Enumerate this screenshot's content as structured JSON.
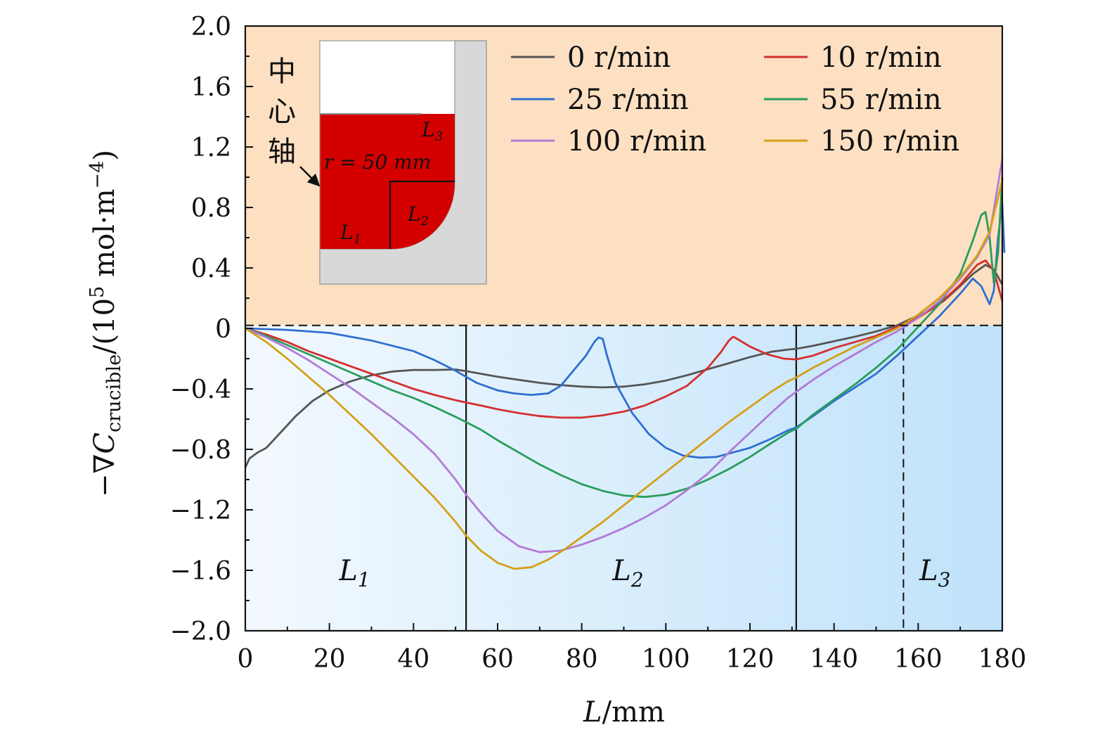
{
  "chart_data": {
    "type": "line",
    "xlabel_var": "L",
    "xlabel_unit": "/mm",
    "ylabel_prefix": "−∇C",
    "ylabel_sub": "crucible",
    "ylabel_mid": "/(10",
    "ylabel_exp": "5",
    "ylabel_unit": " mol·m",
    "ylabel_unit_exp": "−4",
    "ylabel_close": ")",
    "xlim": [
      0,
      180
    ],
    "ylim": [
      -2.0,
      2.0
    ],
    "x_ticks": [
      "0",
      "20",
      "40",
      "60",
      "80",
      "100",
      "120",
      "140",
      "160",
      "180"
    ],
    "y_ticks": [
      "2.0",
      "1.6",
      "1.2",
      "0.8",
      "0.4",
      "0",
      "−0.4",
      "−0.8",
      "−1.2",
      "−1.6",
      "−2.0"
    ],
    "x_tick_values": [
      0,
      20,
      40,
      60,
      80,
      100,
      120,
      140,
      160,
      180
    ],
    "y_tick_values": [
      2.0,
      1.6,
      1.2,
      0.8,
      0.4,
      0,
      -0.4,
      -0.8,
      -1.2,
      -1.6,
      -2.0
    ],
    "regions": [
      {
        "label": "L",
        "sub": "1",
        "x": 26
      },
      {
        "label": "L",
        "sub": "2",
        "x": 91
      },
      {
        "label": "L",
        "sub": "3",
        "x": 164
      }
    ],
    "region_label_y": -1.6,
    "boundaries_solid": [
      52.5,
      131
    ],
    "boundary_dashed": 156.5,
    "zero_line_y": 0.02,
    "region_colors": {
      "positive": "#fde0c2",
      "negative_left": "#f3f9fe",
      "negative_right": "#bfe2fa"
    },
    "series": [
      {
        "name": "0 r/min",
        "color": "#555555",
        "points": [
          [
            0,
            -0.92
          ],
          [
            1,
            -0.86
          ],
          [
            3,
            -0.82
          ],
          [
            5,
            -0.79
          ],
          [
            8,
            -0.7
          ],
          [
            12,
            -0.58
          ],
          [
            16,
            -0.48
          ],
          [
            20,
            -0.41
          ],
          [
            25,
            -0.35
          ],
          [
            30,
            -0.31
          ],
          [
            35,
            -0.285
          ],
          [
            40,
            -0.275
          ],
          [
            45,
            -0.275
          ],
          [
            50,
            -0.272
          ],
          [
            52,
            -0.28
          ],
          [
            56,
            -0.3
          ],
          [
            60,
            -0.32
          ],
          [
            65,
            -0.34
          ],
          [
            70,
            -0.36
          ],
          [
            75,
            -0.375
          ],
          [
            80,
            -0.385
          ],
          [
            85,
            -0.39
          ],
          [
            90,
            -0.385
          ],
          [
            95,
            -0.37
          ],
          [
            100,
            -0.345
          ],
          [
            105,
            -0.31
          ],
          [
            110,
            -0.27
          ],
          [
            115,
            -0.23
          ],
          [
            120,
            -0.19
          ],
          [
            125,
            -0.155
          ],
          [
            129,
            -0.14
          ],
          [
            131,
            -0.135
          ],
          [
            135,
            -0.115
          ],
          [
            140,
            -0.085
          ],
          [
            145,
            -0.055
          ],
          [
            150,
            -0.02
          ],
          [
            155,
            0.02
          ],
          [
            158,
            0.06
          ],
          [
            162,
            0.11
          ],
          [
            166,
            0.18
          ],
          [
            170,
            0.28
          ],
          [
            173,
            0.36
          ],
          [
            176,
            0.42
          ],
          [
            178,
            0.39
          ],
          [
            180,
            0.29
          ]
        ]
      },
      {
        "name": "10 r/min",
        "color": "#d62f2f",
        "points": [
          [
            0,
            0
          ],
          [
            5,
            -0.04
          ],
          [
            10,
            -0.09
          ],
          [
            15,
            -0.15
          ],
          [
            20,
            -0.2
          ],
          [
            25,
            -0.25
          ],
          [
            30,
            -0.3
          ],
          [
            35,
            -0.35
          ],
          [
            40,
            -0.4
          ],
          [
            45,
            -0.44
          ],
          [
            50,
            -0.475
          ],
          [
            52.5,
            -0.49
          ],
          [
            56,
            -0.51
          ],
          [
            60,
            -0.535
          ],
          [
            65,
            -0.56
          ],
          [
            70,
            -0.58
          ],
          [
            75,
            -0.59
          ],
          [
            80,
            -0.59
          ],
          [
            85,
            -0.575
          ],
          [
            90,
            -0.55
          ],
          [
            95,
            -0.51
          ],
          [
            100,
            -0.45
          ],
          [
            105,
            -0.38
          ],
          [
            110,
            -0.26
          ],
          [
            113,
            -0.16
          ],
          [
            115,
            -0.08
          ],
          [
            116,
            -0.055
          ],
          [
            117,
            -0.07
          ],
          [
            120,
            -0.12
          ],
          [
            124,
            -0.17
          ],
          [
            128,
            -0.2
          ],
          [
            131,
            -0.205
          ],
          [
            135,
            -0.18
          ],
          [
            140,
            -0.13
          ],
          [
            145,
            -0.09
          ],
          [
            150,
            -0.05
          ],
          [
            155,
            0.01
          ],
          [
            160,
            0.07
          ],
          [
            165,
            0.16
          ],
          [
            170,
            0.29
          ],
          [
            174,
            0.42
          ],
          [
            176,
            0.45
          ],
          [
            178,
            0.38
          ],
          [
            180,
            0.18
          ]
        ]
      },
      {
        "name": "25 r/min",
        "color": "#2e6fd0",
        "points": [
          [
            0,
            0
          ],
          [
            10,
            -0.01
          ],
          [
            20,
            -0.03
          ],
          [
            30,
            -0.08
          ],
          [
            40,
            -0.15
          ],
          [
            45,
            -0.21
          ],
          [
            50,
            -0.28
          ],
          [
            52.5,
            -0.32
          ],
          [
            55,
            -0.36
          ],
          [
            60,
            -0.41
          ],
          [
            64,
            -0.43
          ],
          [
            68,
            -0.44
          ],
          [
            72,
            -0.43
          ],
          [
            75,
            -0.38
          ],
          [
            78,
            -0.28
          ],
          [
            81,
            -0.18
          ],
          [
            83,
            -0.09
          ],
          [
            84,
            -0.06
          ],
          [
            85,
            -0.07
          ],
          [
            86,
            -0.18
          ],
          [
            88,
            -0.36
          ],
          [
            92,
            -0.56
          ],
          [
            96,
            -0.7
          ],
          [
            100,
            -0.79
          ],
          [
            104,
            -0.84
          ],
          [
            108,
            -0.855
          ],
          [
            112,
            -0.85
          ],
          [
            116,
            -0.82
          ],
          [
            120,
            -0.79
          ],
          [
            125,
            -0.73
          ],
          [
            129,
            -0.675
          ],
          [
            131,
            -0.655
          ],
          [
            135,
            -0.58
          ],
          [
            140,
            -0.48
          ],
          [
            145,
            -0.39
          ],
          [
            150,
            -0.3
          ],
          [
            155,
            -0.18
          ],
          [
            160,
            -0.05
          ],
          [
            165,
            0.08
          ],
          [
            170,
            0.23
          ],
          [
            173,
            0.33
          ],
          [
            175,
            0.28
          ],
          [
            177,
            0.16
          ],
          [
            178,
            0.25
          ],
          [
            179,
            0.6
          ],
          [
            180,
            0.82
          ],
          [
            180.5,
            0.5
          ]
        ]
      },
      {
        "name": "55 r/min",
        "color": "#2a9d5c",
        "points": [
          [
            0,
            0
          ],
          [
            5,
            -0.05
          ],
          [
            10,
            -0.11
          ],
          [
            15,
            -0.17
          ],
          [
            20,
            -0.23
          ],
          [
            25,
            -0.29
          ],
          [
            30,
            -0.35
          ],
          [
            35,
            -0.41
          ],
          [
            40,
            -0.46
          ],
          [
            45,
            -0.52
          ],
          [
            50,
            -0.585
          ],
          [
            52.5,
            -0.62
          ],
          [
            56,
            -0.67
          ],
          [
            60,
            -0.74
          ],
          [
            65,
            -0.82
          ],
          [
            70,
            -0.9
          ],
          [
            75,
            -0.97
          ],
          [
            80,
            -1.03
          ],
          [
            85,
            -1.075
          ],
          [
            90,
            -1.105
          ],
          [
            95,
            -1.115
          ],
          [
            100,
            -1.1
          ],
          [
            105,
            -1.06
          ],
          [
            110,
            -1.0
          ],
          [
            115,
            -0.93
          ],
          [
            120,
            -0.85
          ],
          [
            125,
            -0.76
          ],
          [
            129,
            -0.69
          ],
          [
            131,
            -0.665
          ],
          [
            135,
            -0.57
          ],
          [
            140,
            -0.47
          ],
          [
            145,
            -0.37
          ],
          [
            150,
            -0.26
          ],
          [
            155,
            -0.14
          ],
          [
            160,
            0.01
          ],
          [
            165,
            0.16
          ],
          [
            170,
            0.36
          ],
          [
            173,
            0.58
          ],
          [
            175,
            0.75
          ],
          [
            176,
            0.77
          ],
          [
            177,
            0.6
          ],
          [
            178,
            0.3
          ],
          [
            179,
            0.5
          ],
          [
            180,
            1.0
          ]
        ]
      },
      {
        "name": "100 r/min",
        "color": "#b27ad6",
        "points": [
          [
            0,
            0
          ],
          [
            5,
            -0.06
          ],
          [
            10,
            -0.13
          ],
          [
            15,
            -0.21
          ],
          [
            20,
            -0.3
          ],
          [
            25,
            -0.39
          ],
          [
            30,
            -0.49
          ],
          [
            35,
            -0.59
          ],
          [
            40,
            -0.7
          ],
          [
            45,
            -0.83
          ],
          [
            50,
            -1.0
          ],
          [
            52.5,
            -1.1
          ],
          [
            56,
            -1.22
          ],
          [
            60,
            -1.34
          ],
          [
            65,
            -1.44
          ],
          [
            70,
            -1.48
          ],
          [
            75,
            -1.47
          ],
          [
            80,
            -1.43
          ],
          [
            85,
            -1.38
          ],
          [
            90,
            -1.32
          ],
          [
            95,
            -1.25
          ],
          [
            100,
            -1.17
          ],
          [
            105,
            -1.07
          ],
          [
            110,
            -0.96
          ],
          [
            115,
            -0.82
          ],
          [
            120,
            -0.69
          ],
          [
            125,
            -0.56
          ],
          [
            129,
            -0.46
          ],
          [
            131,
            -0.42
          ],
          [
            135,
            -0.34
          ],
          [
            140,
            -0.25
          ],
          [
            145,
            -0.17
          ],
          [
            150,
            -0.09
          ],
          [
            155,
            -0.02
          ],
          [
            160,
            0.07
          ],
          [
            165,
            0.18
          ],
          [
            170,
            0.33
          ],
          [
            174,
            0.47
          ],
          [
            177,
            0.62
          ],
          [
            180,
            1.12
          ]
        ]
      },
      {
        "name": "150 r/min",
        "color": "#d4a017",
        "points": [
          [
            0,
            0
          ],
          [
            5,
            -0.09
          ],
          [
            10,
            -0.2
          ],
          [
            15,
            -0.32
          ],
          [
            20,
            -0.44
          ],
          [
            25,
            -0.57
          ],
          [
            30,
            -0.7
          ],
          [
            35,
            -0.84
          ],
          [
            40,
            -0.98
          ],
          [
            45,
            -1.12
          ],
          [
            50,
            -1.28
          ],
          [
            52.5,
            -1.37
          ],
          [
            56,
            -1.47
          ],
          [
            60,
            -1.55
          ],
          [
            64,
            -1.59
          ],
          [
            68,
            -1.58
          ],
          [
            72,
            -1.53
          ],
          [
            76,
            -1.46
          ],
          [
            80,
            -1.38
          ],
          [
            85,
            -1.28
          ],
          [
            90,
            -1.17
          ],
          [
            95,
            -1.06
          ],
          [
            100,
            -0.95
          ],
          [
            105,
            -0.84
          ],
          [
            110,
            -0.73
          ],
          [
            115,
            -0.62
          ],
          [
            120,
            -0.52
          ],
          [
            125,
            -0.42
          ],
          [
            129,
            -0.35
          ],
          [
            131,
            -0.325
          ],
          [
            135,
            -0.26
          ],
          [
            140,
            -0.19
          ],
          [
            145,
            -0.12
          ],
          [
            150,
            -0.06
          ],
          [
            155,
            0.0
          ],
          [
            160,
            0.09
          ],
          [
            165,
            0.2
          ],
          [
            170,
            0.34
          ],
          [
            174,
            0.48
          ],
          [
            177,
            0.64
          ],
          [
            180,
            0.98
          ]
        ]
      }
    ],
    "legend": [
      {
        "label": "0 r/min",
        "color": "#555555"
      },
      {
        "label": "10 r/min",
        "color": "#d62f2f"
      },
      {
        "label": "25 r/min",
        "color": "#2e6fd0"
      },
      {
        "label": "55 r/min",
        "color": "#2a9d5c"
      },
      {
        "label": "100 r/min",
        "color": "#b27ad6"
      },
      {
        "label": "150 r/min",
        "color": "#d4a017"
      }
    ],
    "inset": {
      "axis_label": [
        "中",
        "心",
        "轴"
      ],
      "radius_label": "r = 50 mm",
      "labels": [
        {
          "label": "L",
          "sub": "1"
        },
        {
          "label": "L",
          "sub": "2"
        },
        {
          "label": "L",
          "sub": "3"
        }
      ],
      "melt_color": "#d40000",
      "crucible_color": "#d8d8d8"
    }
  }
}
